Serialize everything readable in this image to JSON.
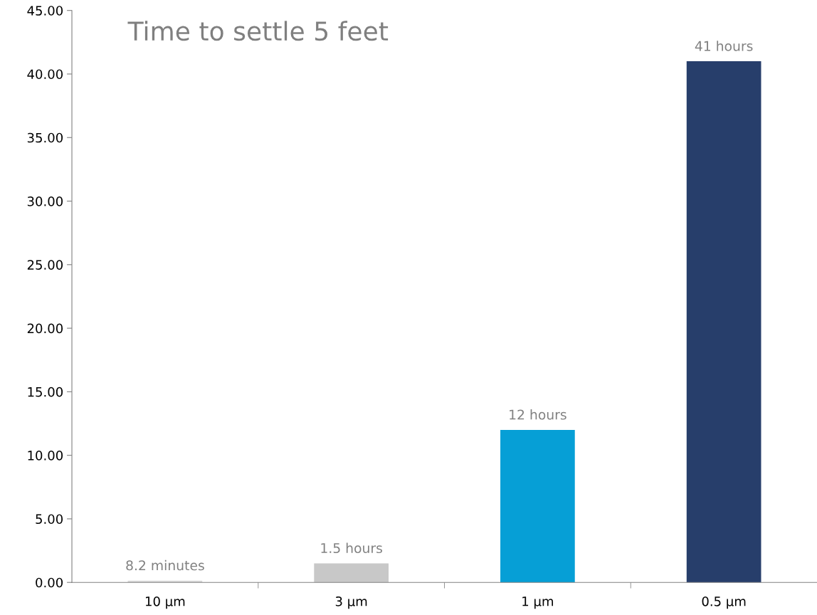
{
  "chart_data": {
    "type": "bar",
    "title": "Time to settle 5 feet",
    "categories": [
      "10 µm",
      "3 µm",
      "1 µm",
      "0.5 µm"
    ],
    "values": [
      0.14,
      1.5,
      12,
      41
    ],
    "colors": [
      "#d9d9d9",
      "#c8c8c8",
      "#069fd6",
      "#273e6b"
    ],
    "annotations": [
      {
        "text": "8.2 minutes",
        "x": "10 µm",
        "y": 0.14
      },
      {
        "text": "1.5 hours",
        "x": "3 µm",
        "y": 1.5
      },
      {
        "text": "12 hours",
        "x": "1 µm",
        "y": 12
      },
      {
        "text": "41 hours",
        "x": "0.5 µm",
        "y": 41
      }
    ],
    "ylim": [
      0,
      45
    ],
    "yticks": [
      {
        "value": 0,
        "label": "0.00"
      },
      {
        "value": 5,
        "label": "5.00"
      },
      {
        "value": 10,
        "label": "10.00"
      },
      {
        "value": 15,
        "label": "15.00"
      },
      {
        "value": 20,
        "label": "20.00"
      },
      {
        "value": 25,
        "label": "25.00"
      },
      {
        "value": 30,
        "label": "30.00"
      },
      {
        "value": 35,
        "label": "35.00"
      },
      {
        "value": 40,
        "label": "40.00"
      },
      {
        "value": 45,
        "label": "45.00"
      }
    ],
    "grid": false
  }
}
